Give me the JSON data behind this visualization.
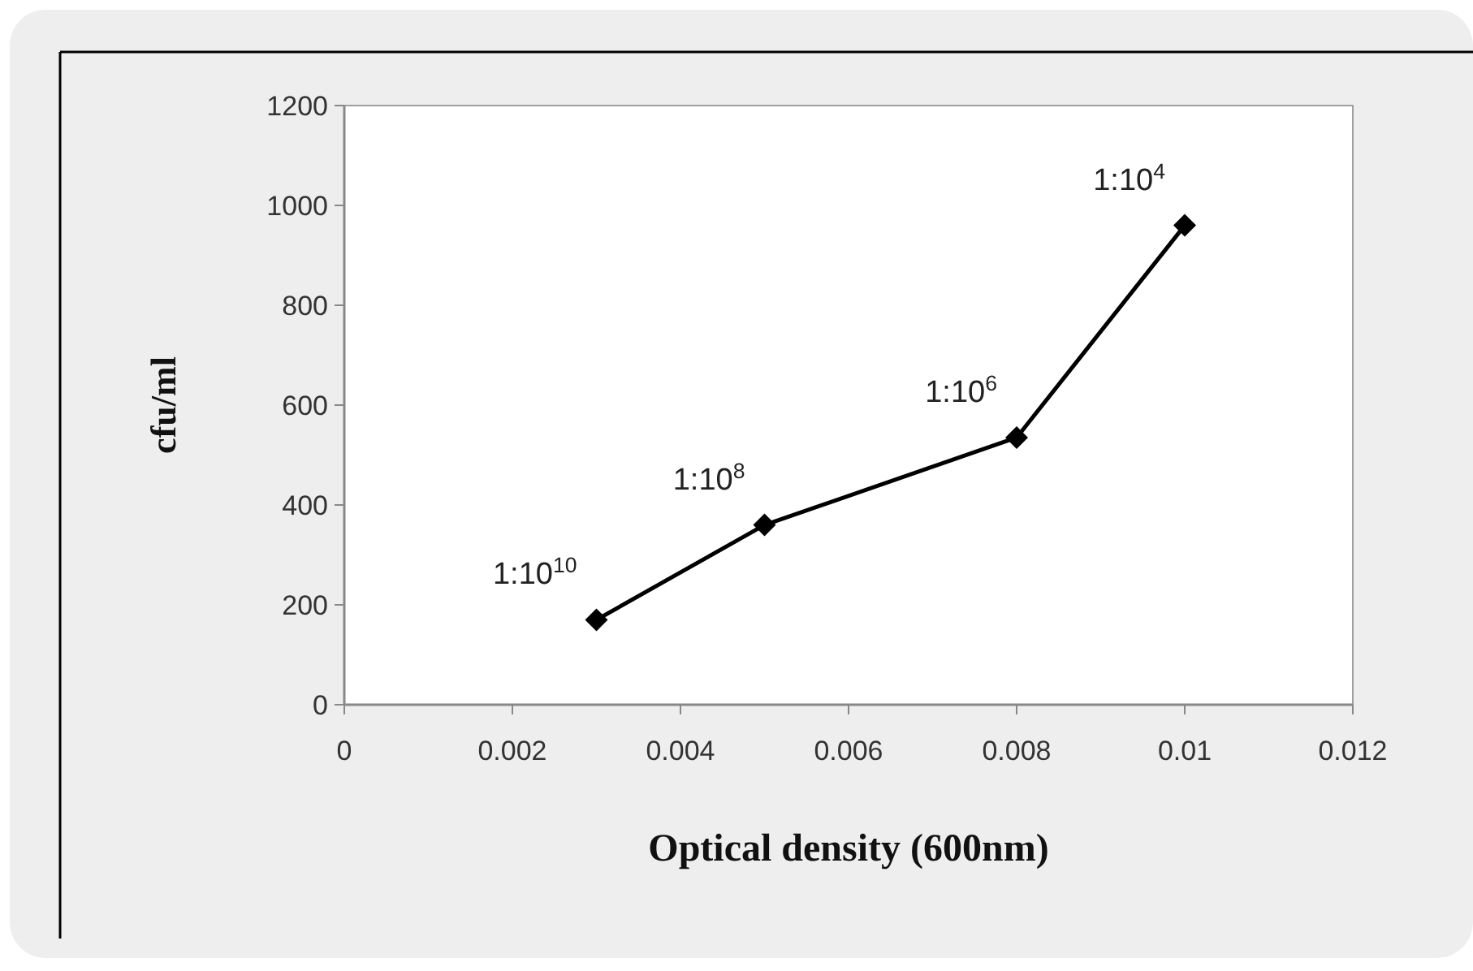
{
  "chart_data": {
    "type": "line",
    "xlabel": "Optical density (600nm)",
    "ylabel": "cfu/ml",
    "x": [
      0.003,
      0.005,
      0.008,
      0.01
    ],
    "series": [
      {
        "color": "#000000",
        "values": [
          170,
          360,
          535,
          960
        ]
      }
    ],
    "xlim": [
      0,
      0.012
    ],
    "xticks": [
      0,
      0.002,
      0.004,
      0.006,
      0.008,
      0.01,
      0.012
    ],
    "ylim": [
      0,
      1200
    ],
    "yticks": [
      0,
      200,
      400,
      600,
      800,
      1000,
      1200
    ],
    "grid": false,
    "marker": "diamond",
    "line_style": "solid",
    "annotations": [
      {
        "text": "1:10$^{10}$",
        "x": 0.003,
        "y": 170
      },
      {
        "text": "1:10$^{8}$",
        "x": 0.005,
        "y": 360
      },
      {
        "text": "1:10$^{6}$",
        "x": 0.008,
        "y": 535
      },
      {
        "text": "1:10$^{4}$",
        "x": 0.01,
        "y": 960
      }
    ]
  }
}
